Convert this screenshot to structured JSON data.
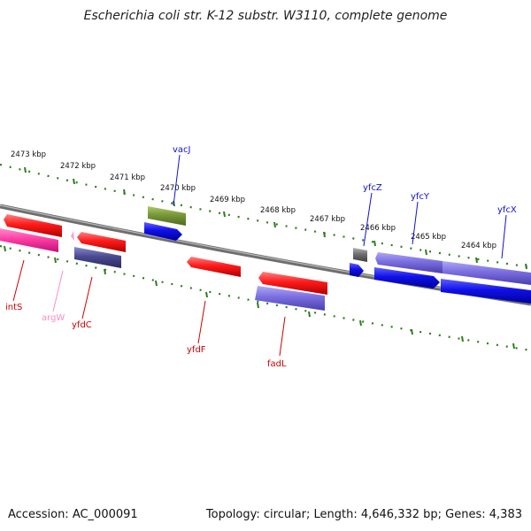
{
  "title": "Escherichia coli str. K-12 substr. W3110, complete genome",
  "footer": {
    "accession": "Accession: AC_000091",
    "stats": "Topology: circular; Length: 4,646,332 bp; Genes: 4,383"
  },
  "ruler_labels": [
    "2473 kbp",
    "2472 kbp",
    "2471 kbp",
    "2470 kbp",
    "2469 kbp",
    "2468 kbp",
    "2467 kbp",
    "2466 kbp",
    "2465 kbp",
    "2464 kbp"
  ],
  "gene_labels": {
    "vacJ": "vacJ",
    "yfcZ": "yfcZ",
    "yfcY": "yfcY",
    "yfcX": "yfcX",
    "intS": "intS",
    "argW": "argW",
    "yfdC": "yfdC",
    "yfdF": "yfdF",
    "fadL": "fadL"
  },
  "colors": {
    "backbone": "#808080",
    "ruler_ticks": "#2e7d1e",
    "red_feature": "#ff1a1a",
    "blue_feature": "#1010e8",
    "purple_feature": "#7a6ee0",
    "pink_feature": "#ff3da3",
    "olive_feature": "#789838",
    "dark_purple_feature": "#4a4a90",
    "gray_feature": "#707070"
  }
}
